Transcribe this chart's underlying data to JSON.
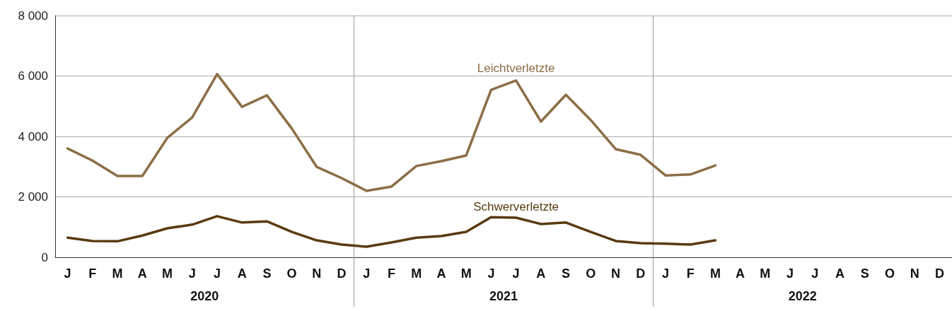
{
  "chart_data": {
    "type": "line",
    "categories": [
      "J",
      "F",
      "M",
      "A",
      "M",
      "J",
      "J",
      "A",
      "S",
      "O",
      "N",
      "D",
      "J",
      "F",
      "M",
      "A",
      "M",
      "J",
      "J",
      "A",
      "S",
      "O",
      "N",
      "D",
      "J",
      "F",
      "M",
      "A",
      "M",
      "J",
      "J",
      "A",
      "S",
      "O",
      "N",
      "D"
    ],
    "series": [
      {
        "name": "Leichtverletzte",
        "color": "#8c6d46",
        "values": [
          3600,
          3200,
          2690,
          2690,
          3950,
          4630,
          6060,
          4980,
          5360,
          4260,
          2990,
          2620,
          2200,
          2340,
          3020,
          3180,
          3370,
          5540,
          5850,
          4490,
          5380,
          4540,
          3580,
          3390,
          2710,
          2740,
          3040,
          null,
          null,
          null,
          null,
          null,
          null,
          null,
          null,
          null
        ]
      },
      {
        "name": "Schwerverletzte",
        "color": "#5a3a10",
        "values": [
          650,
          540,
          530,
          720,
          960,
          1080,
          1360,
          1150,
          1190,
          840,
          560,
          420,
          350,
          490,
          650,
          700,
          840,
          1330,
          1310,
          1100,
          1150,
          840,
          540,
          470,
          450,
          420,
          560,
          null,
          null,
          null,
          null,
          null,
          null,
          null,
          null,
          null
        ]
      }
    ],
    "ylim": [
      0,
      8000
    ],
    "yticks": [
      {
        "value": 0,
        "label": "0"
      },
      {
        "value": 2000,
        "label": "2 000"
      },
      {
        "value": 4000,
        "label": "4 000"
      },
      {
        "value": 6000,
        "label": "6 000"
      },
      {
        "value": 8000,
        "label": "8 000"
      }
    ],
    "annotations": [
      "2020",
      "2021",
      "2022"
    ],
    "grid": true,
    "marker": "none",
    "line_style": "solid",
    "legend": false
  }
}
